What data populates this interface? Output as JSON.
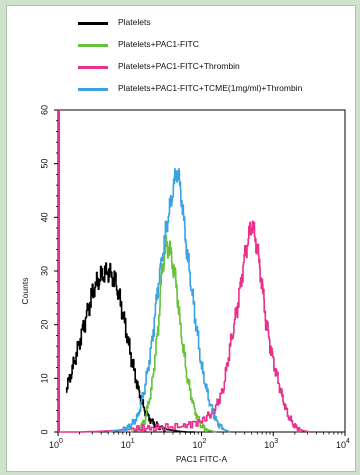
{
  "chart_data": {
    "type": "line",
    "xlabel": "PAC1 FITC-A",
    "ylabel": "Counts",
    "x_scale": "log",
    "xlim": [
      1,
      10000
    ],
    "ylim": [
      0,
      60
    ],
    "x_ticks": [
      {
        "value": 1,
        "mantissa": "10",
        "exp": "0"
      },
      {
        "value": 10,
        "mantissa": "10",
        "exp": "1"
      },
      {
        "value": 100,
        "mantissa": "10",
        "exp": "2"
      },
      {
        "value": 1000,
        "mantissa": "10",
        "exp": "3"
      },
      {
        "value": 10000,
        "mantissa": "10",
        "exp": "4"
      }
    ],
    "y_ticks": [
      {
        "value": 0,
        "label": "0"
      },
      {
        "value": 10,
        "label": "10"
      },
      {
        "value": 20,
        "label": "20"
      },
      {
        "value": 30,
        "label": "30"
      },
      {
        "value": 40,
        "label": "40"
      },
      {
        "value": 50,
        "label": "50"
      },
      {
        "value": 60,
        "label": "60"
      }
    ],
    "series": [
      {
        "name": "Platelets",
        "color": "#000000",
        "x": [
          1.3,
          1.6,
          2.0,
          2.5,
          3.2,
          4.0,
          5.0,
          6.3,
          8.0,
          10.0,
          13.0,
          16.0,
          20.0,
          25.0,
          32.0,
          40.0,
          50.0,
          63.0,
          80.0
        ],
        "y": [
          8,
          12,
          17,
          22,
          27,
          29,
          30,
          28,
          22,
          15,
          8,
          4,
          2,
          1,
          0.5,
          0.3,
          0.1,
          0,
          0
        ]
      },
      {
        "name": "Platelets+PAC1-FITC",
        "color": "#66c23a",
        "x": [
          10.0,
          13.0,
          16.0,
          20.0,
          25.0,
          28.0,
          32.0,
          36.0,
          40.0,
          45.0,
          50.0,
          63.0,
          80.0,
          100.0,
          126.0,
          160.0
        ],
        "y": [
          0,
          0.5,
          2,
          8,
          20,
          30,
          35,
          34,
          31,
          27,
          20,
          10,
          4,
          1,
          0.3,
          0
        ]
      },
      {
        "name": "Platelets+PAC1-FITC+Thrombin",
        "color": "#e8308c",
        "x": [
          1.0,
          2.0,
          5.0,
          10.0,
          20.0,
          50.0,
          100.0,
          150.0,
          200.0,
          250.0,
          320.0,
          400.0,
          500.0,
          600.0,
          700.0,
          800.0,
          1000.0,
          1300.0,
          1600.0,
          2000.0,
          2500.0,
          3200.0
        ],
        "y": [
          0,
          0,
          0.2,
          0.5,
          0.8,
          1,
          2,
          4,
          8,
          16,
          24,
          33,
          39,
          34,
          27,
          20,
          13,
          7,
          3,
          1,
          0.3,
          0
        ]
      },
      {
        "name": "Platelets+PAC1-FITC+TCME(1mg/ml)+Thrombin",
        "color": "#3aa3e0",
        "x": [
          5.0,
          8.0,
          10.0,
          13.0,
          16.0,
          20.0,
          25.0,
          32.0,
          40.0,
          45.0,
          50.0,
          56.0,
          63.0,
          80.0,
          100.0,
          126.0,
          160.0,
          200.0,
          250.0
        ],
        "y": [
          0,
          0.5,
          1,
          3,
          8,
          16,
          28,
          38,
          45,
          49,
          46,
          40,
          33,
          22,
          12,
          6,
          2,
          0.5,
          0
        ]
      }
    ],
    "gate_line": {
      "color": "#e8308c",
      "x": 1
    }
  }
}
